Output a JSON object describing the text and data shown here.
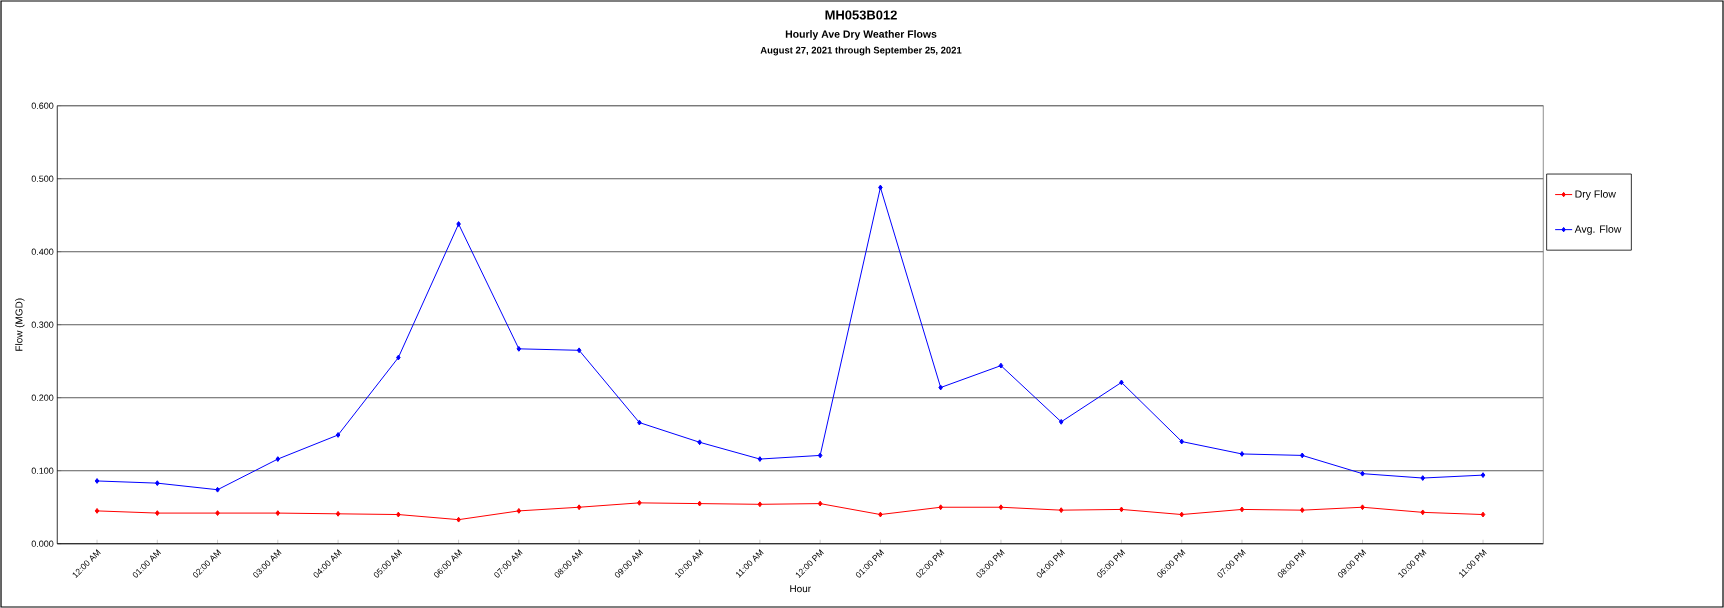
{
  "chart_data": {
    "type": "line",
    "title": "MH053B012",
    "subtitle": "Hourly Ave Dry Weather Flows",
    "annotations": [
      "August 27, 2021 through September 25, 2021"
    ],
    "xlabel": "Hour",
    "ylabel": "Flow (MGD)",
    "categories": [
      "12:00 AM",
      "01:00 AM",
      "02:00 AM",
      "03:00 AM",
      "04:00 AM",
      "05:00 AM",
      "06:00 AM",
      "07:00 AM",
      "08:00 AM",
      "09:00 AM",
      "10:00 AM",
      "11:00 AM",
      "12:00 PM",
      "01:00 PM",
      "02:00 PM",
      "03:00 PM",
      "04:00 PM",
      "05:00 PM",
      "06:00 PM",
      "07:00 PM",
      "08:00 PM",
      "09:00 PM",
      "10:00 PM",
      "11:00 PM"
    ],
    "series": [
      {
        "name": "Dry Flow",
        "color": "#ff0000",
        "values": [
          0.045,
          0.042,
          0.042,
          0.042,
          0.041,
          0.04,
          0.033,
          0.045,
          0.05,
          0.056,
          0.055,
          0.054,
          0.055,
          0.04,
          0.05,
          0.05,
          0.046,
          0.047,
          0.04,
          0.047,
          0.046,
          0.05,
          0.043,
          0.04
        ]
      },
      {
        "name": "Avg. Flow",
        "color": "#0000ff",
        "values": [
          0.086,
          0.083,
          0.074,
          0.116,
          0.149,
          0.255,
          0.438,
          0.267,
          0.265,
          0.166,
          0.139,
          0.116,
          0.121,
          0.488,
          0.214,
          0.244,
          0.167,
          0.221,
          0.14,
          0.123,
          0.121,
          0.096,
          0.09,
          0.094
        ]
      }
    ],
    "ylim": [
      0,
      0.6
    ],
    "yticks": [
      {
        "value": 0,
        "label": "0.000"
      },
      {
        "value": 0.1,
        "label": "0.100"
      },
      {
        "value": 0.2,
        "label": "0.200"
      },
      {
        "value": 0.3,
        "label": "0.300"
      },
      {
        "value": 0.4,
        "label": "0.400"
      },
      {
        "value": 0.5,
        "label": "0.500"
      },
      {
        "value": 0.6,
        "label": "0.600"
      }
    ],
    "grid": "y",
    "legend": "right",
    "marker": "diamond",
    "line_style": "solid"
  }
}
